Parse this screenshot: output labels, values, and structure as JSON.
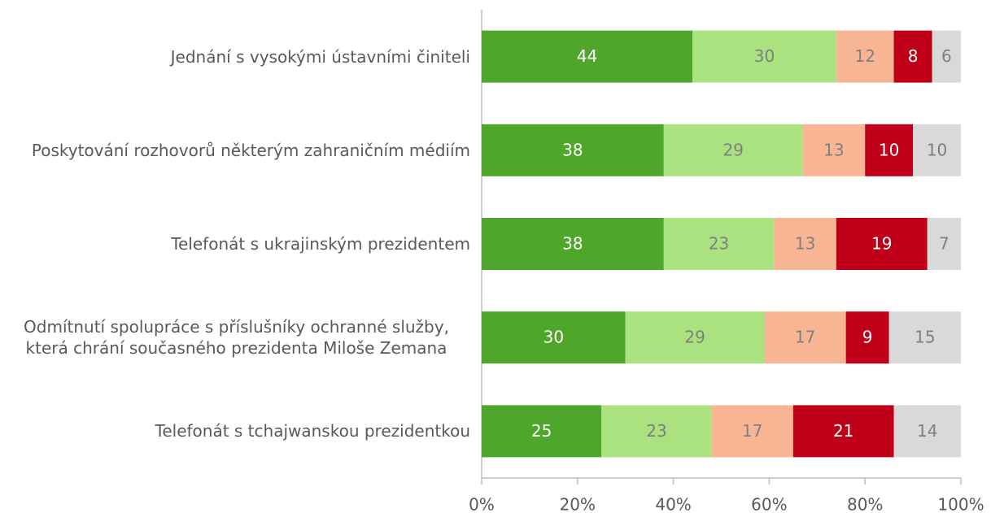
{
  "chart_data": {
    "type": "stacked-bar-horizontal",
    "categories": [
      "Jednání s vysokými ústavními činiteli",
      "Poskytování rozhovorů některým zahraničním médiím",
      "Telefonát s ukrajinským prezidentem",
      "Odmítnutí spolupráce s příslušníky ochranné služby, která chrání současného prezidenta Miloše Zemana",
      "Telefonát s tchajwanskou prezidentkou"
    ],
    "series": [
      {
        "color": "#4ea72a",
        "label_color": "#ffffff",
        "values": [
          44,
          38,
          38,
          30,
          25
        ]
      },
      {
        "color": "#a9e27e",
        "label_color": "#7f7f7f",
        "values": [
          30,
          29,
          23,
          29,
          23
        ]
      },
      {
        "color": "#f8b593",
        "label_color": "#7f7f7f",
        "values": [
          12,
          13,
          13,
          17,
          17
        ]
      },
      {
        "color": "#c00018",
        "label_color": "#ffffff",
        "values": [
          8,
          10,
          19,
          9,
          21
        ]
      },
      {
        "color": "#d9d9d9",
        "label_color": "#7f7f7f",
        "values": [
          6,
          10,
          7,
          15,
          14
        ]
      }
    ],
    "xlim": [
      0,
      100
    ],
    "xticks": [
      {
        "value": 0,
        "label": "0%"
      },
      {
        "value": 20,
        "label": "20%"
      },
      {
        "value": 40,
        "label": "40%"
      },
      {
        "value": 60,
        "label": "60%"
      },
      {
        "value": 80,
        "label": "80%"
      },
      {
        "value": 100,
        "label": "100%"
      }
    ]
  }
}
